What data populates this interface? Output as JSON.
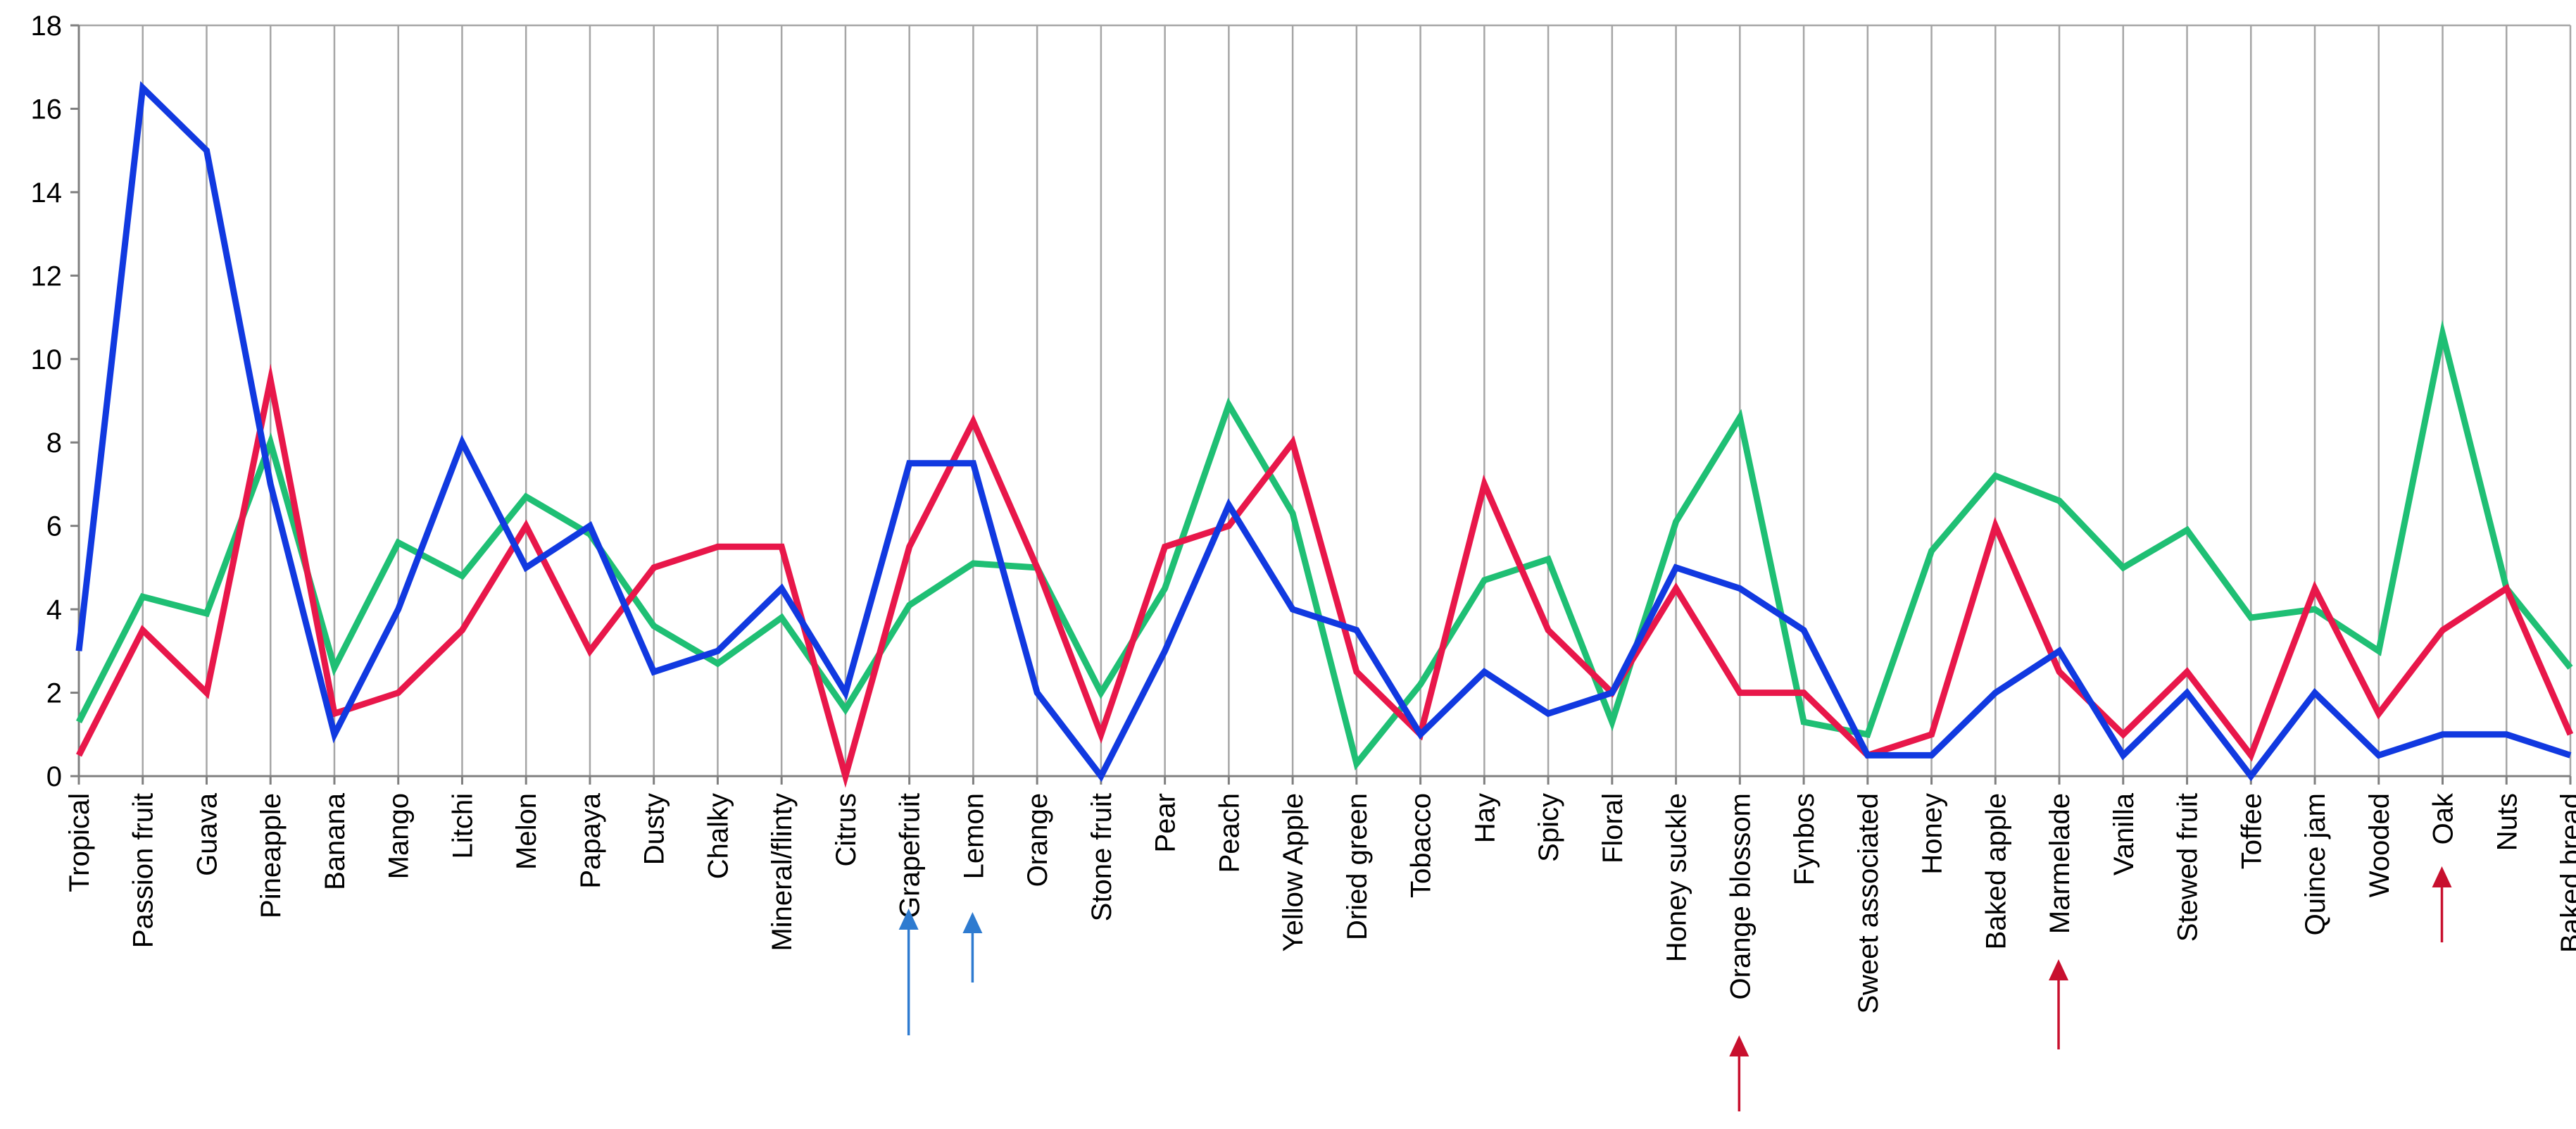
{
  "chart_data": {
    "type": "line",
    "title": "",
    "xlabel": "",
    "ylabel": "",
    "ylim": [
      0,
      18
    ],
    "yticks": [
      0,
      2,
      4,
      6,
      8,
      10,
      12,
      14,
      16,
      18
    ],
    "grid": "vertical lines at each category",
    "legend": "none",
    "categories": [
      "Tropical",
      "Passion fruit",
      "Guava",
      "Pineapple",
      "Banana",
      "Mango",
      "Litchi",
      "Melon",
      "Papaya",
      "Dusty",
      "Chalky",
      "Mineral/flinty",
      "Citrus",
      "Grapefruit",
      "Lemon",
      "Orange",
      "Stone fruit",
      "Pear",
      "Peach",
      "Yellow Apple",
      "Dried green",
      "Tobacco",
      "Hay",
      "Spicy",
      "Floral",
      "Honey suckle",
      "Orange blossom",
      "Fynbos",
      "Sweet associated",
      "Honey",
      "Baked apple",
      "Marmelade",
      "Vanilla",
      "Stewed fruit",
      "Toffee",
      "Quince jam",
      "Wooded",
      "Oak",
      "Nuts",
      "Baked bread"
    ],
    "series": [
      {
        "color": "#1fbf74",
        "values": [
          1.3,
          4.3,
          3.9,
          8.0,
          2.6,
          5.6,
          4.8,
          6.7,
          5.8,
          3.6,
          2.7,
          3.8,
          1.6,
          4.1,
          5.1,
          5.0,
          2.0,
          4.5,
          8.9,
          6.3,
          0.3,
          2.2,
          4.7,
          5.2,
          1.3,
          6.1,
          8.6,
          1.3,
          1.0,
          5.4,
          7.2,
          6.6,
          5.0,
          5.9,
          3.8,
          4.0,
          3.0,
          10.6,
          4.5,
          2.6
        ]
      },
      {
        "color": "#e8174a",
        "values": [
          0.5,
          3.5,
          2.0,
          9.5,
          1.5,
          2.0,
          3.5,
          6.0,
          3.0,
          5.0,
          5.5,
          5.5,
          0.0,
          5.5,
          8.5,
          5.0,
          1.0,
          5.5,
          6.0,
          8.0,
          2.5,
          1.0,
          7.0,
          3.5,
          2.0,
          4.5,
          2.0,
          2.0,
          0.5,
          1.0,
          6.0,
          2.5,
          1.0,
          2.5,
          0.5,
          4.5,
          1.5,
          3.5,
          4.5,
          1.0
        ]
      },
      {
        "color": "#1139e0",
        "values": [
          3.0,
          16.5,
          15.0,
          7.0,
          1.0,
          4.0,
          8.0,
          5.0,
          6.0,
          2.5,
          3.0,
          4.5,
          2.0,
          7.5,
          7.5,
          2.0,
          0.0,
          3.0,
          6.5,
          4.0,
          3.5,
          1.0,
          2.5,
          1.5,
          2.0,
          5.0,
          4.5,
          3.5,
          0.5,
          0.5,
          2.0,
          3.0,
          0.5,
          2.0,
          0.0,
          2.0,
          0.5,
          1.0,
          1.0,
          0.5
        ]
      }
    ],
    "annotations": [
      {
        "type": "arrow",
        "category": "Grapefruit",
        "color": "#2e7bd0"
      },
      {
        "type": "arrow",
        "category": "Lemon",
        "color": "#2e7bd0"
      },
      {
        "type": "arrow",
        "category": "Orange blossom",
        "color": "#c8102e"
      },
      {
        "type": "arrow",
        "category": "Marmelade",
        "color": "#c8102e"
      },
      {
        "type": "arrow",
        "category": "Oak",
        "color": "#c8102e"
      }
    ]
  }
}
